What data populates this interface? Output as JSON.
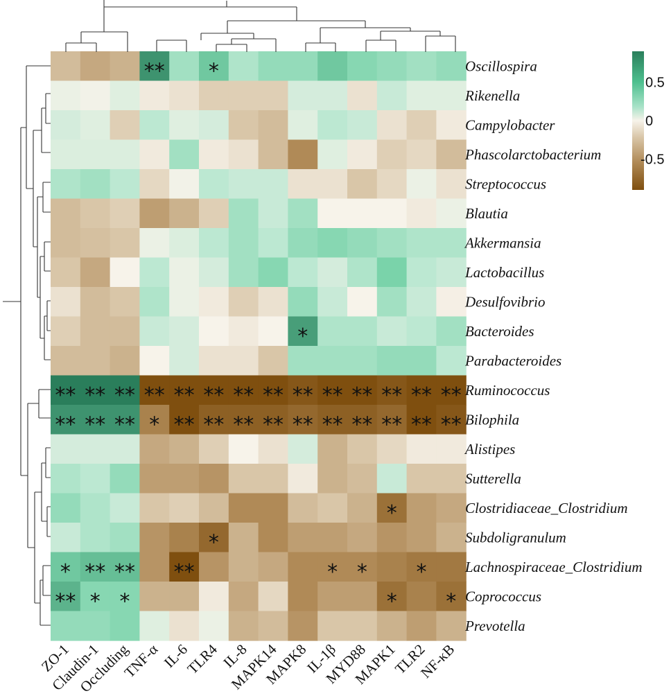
{
  "chart_data": {
    "type": "heatmap",
    "title": "",
    "value_meaning": "correlation coefficient",
    "columns": [
      "ZO-1",
      "Claudin-1",
      "Occluding",
      "TNF-α",
      "IL-6",
      "TLR4",
      "IL-8",
      "MAPK14",
      "MAPK8",
      "IL-1β",
      "MYD88",
      "MAPK1",
      "TLR2",
      "NF-κB"
    ],
    "rows": [
      "Oscillospira",
      "Rikenella",
      "Campylobacter",
      "Phascolarctobacterium",
      "Streptococcus",
      "Blautia",
      "Akkermansia",
      "Lactobacillus",
      "Desulfovibrio",
      "Bacteroides",
      "Parabacteroides",
      "Ruminococcus",
      "Bilophila",
      "Alistipes",
      "Sutterella",
      "Clostridiaceae_Clostridium",
      "Subdoligranulum",
      "Lachnospiraceae_Clostridium",
      "Coprococcus",
      "Prevotella"
    ],
    "values": [
      [
        -0.3,
        -0.4,
        -0.35,
        0.8,
        0.35,
        0.55,
        0.3,
        0.4,
        0.4,
        0.55,
        0.45,
        0.4,
        0.35,
        0.4
      ],
      [
        0.05,
        0.02,
        0.1,
        -0.05,
        -0.1,
        -0.2,
        -0.2,
        -0.2,
        0.15,
        0.15,
        -0.1,
        0.2,
        0.1,
        0.1
      ],
      [
        0.15,
        0.1,
        -0.2,
        0.25,
        0.1,
        0.15,
        -0.25,
        -0.3,
        0.1,
        0.25,
        0.2,
        -0.1,
        -0.2,
        -0.05
      ],
      [
        0.12,
        0.12,
        0.12,
        -0.05,
        0.35,
        -0.05,
        -0.1,
        -0.3,
        -0.55,
        0.1,
        -0.05,
        -0.2,
        -0.15,
        -0.3
      ],
      [
        0.3,
        0.35,
        0.25,
        -0.15,
        0.02,
        0.25,
        0.2,
        0.2,
        -0.1,
        -0.1,
        -0.25,
        -0.15,
        0.05,
        -0.1
      ],
      [
        -0.3,
        -0.25,
        -0.2,
        -0.45,
        -0.35,
        -0.2,
        0.35,
        0.2,
        0.35,
        0.0,
        0.0,
        0.0,
        -0.05,
        0.05
      ],
      [
        -0.3,
        -0.28,
        -0.25,
        0.05,
        0.12,
        0.25,
        0.35,
        0.25,
        0.4,
        0.45,
        0.4,
        0.35,
        0.3,
        0.3
      ],
      [
        -0.25,
        -0.4,
        0.0,
        0.25,
        0.05,
        0.15,
        0.35,
        0.45,
        0.25,
        0.15,
        0.3,
        0.5,
        0.25,
        0.2
      ],
      [
        -0.1,
        -0.3,
        -0.25,
        0.3,
        0.05,
        -0.05,
        -0.2,
        -0.1,
        0.4,
        0.2,
        0.0,
        0.35,
        0.2,
        -0.02
      ],
      [
        -0.2,
        -0.3,
        -0.3,
        0.2,
        0.15,
        0.0,
        -0.05,
        0.0,
        0.75,
        0.3,
        0.3,
        0.2,
        0.25,
        0.35
      ],
      [
        -0.3,
        -0.3,
        -0.35,
        0.0,
        0.15,
        -0.1,
        -0.1,
        -0.25,
        0.35,
        0.35,
        0.35,
        0.4,
        0.4,
        0.25
      ],
      [
        0.9,
        0.9,
        0.9,
        -0.9,
        -0.9,
        -0.9,
        -0.9,
        -0.9,
        -0.85,
        -0.9,
        -0.9,
        -0.85,
        -0.9,
        -0.9
      ],
      [
        0.8,
        0.8,
        0.8,
        -0.6,
        -0.9,
        -0.8,
        -0.8,
        -0.8,
        -0.75,
        -0.8,
        -0.8,
        -0.75,
        -0.9,
        -0.85
      ],
      [
        0.15,
        0.15,
        0.15,
        -0.4,
        -0.35,
        -0.2,
        0.0,
        -0.1,
        0.15,
        -0.35,
        -0.25,
        -0.15,
        -0.05,
        -0.05
      ],
      [
        0.3,
        0.25,
        0.4,
        -0.45,
        -0.45,
        -0.5,
        -0.25,
        -0.25,
        -0.05,
        -0.35,
        -0.3,
        0.2,
        -0.25,
        -0.25
      ],
      [
        0.4,
        0.3,
        0.2,
        -0.25,
        -0.2,
        -0.3,
        -0.55,
        -0.55,
        -0.3,
        -0.25,
        -0.35,
        -0.7,
        -0.45,
        -0.4
      ],
      [
        0.2,
        0.3,
        0.35,
        -0.5,
        -0.6,
        -0.75,
        -0.35,
        -0.55,
        -0.45,
        -0.45,
        -0.4,
        -0.5,
        -0.45,
        -0.35
      ],
      [
        0.55,
        0.6,
        0.6,
        -0.5,
        -0.9,
        -0.5,
        -0.35,
        -0.4,
        -0.55,
        -0.55,
        -0.55,
        -0.6,
        -0.65,
        -0.65
      ],
      [
        0.65,
        0.45,
        0.45,
        -0.35,
        -0.35,
        -0.05,
        -0.4,
        -0.15,
        -0.55,
        -0.45,
        -0.45,
        -0.7,
        -0.6,
        -0.7
      ],
      [
        0.4,
        0.4,
        0.45,
        0.1,
        -0.1,
        0.05,
        -0.35,
        -0.3,
        -0.5,
        -0.25,
        -0.25,
        -0.35,
        -0.45,
        -0.35
      ]
    ],
    "significance": [
      [
        "",
        "",
        "",
        "**",
        "",
        "*",
        "",
        "",
        "",
        "",
        "",
        "",
        "",
        ""
      ],
      [
        "",
        "",
        "",
        "",
        "",
        "",
        "",
        "",
        "",
        "",
        "",
        "",
        "",
        ""
      ],
      [
        "",
        "",
        "",
        "",
        "",
        "",
        "",
        "",
        "",
        "",
        "",
        "",
        "",
        ""
      ],
      [
        "",
        "",
        "",
        "",
        "",
        "",
        "",
        "",
        "",
        "",
        "",
        "",
        "",
        ""
      ],
      [
        "",
        "",
        "",
        "",
        "",
        "",
        "",
        "",
        "",
        "",
        "",
        "",
        "",
        ""
      ],
      [
        "",
        "",
        "",
        "",
        "",
        "",
        "",
        "",
        "",
        "",
        "",
        "",
        "",
        ""
      ],
      [
        "",
        "",
        "",
        "",
        "",
        "",
        "",
        "",
        "",
        "",
        "",
        "",
        "",
        ""
      ],
      [
        "",
        "",
        "",
        "",
        "",
        "",
        "",
        "",
        "",
        "",
        "",
        "",
        "",
        ""
      ],
      [
        "",
        "",
        "",
        "",
        "",
        "",
        "",
        "",
        "",
        "",
        "",
        "",
        "",
        ""
      ],
      [
        "",
        "",
        "",
        "",
        "",
        "",
        "",
        "",
        "*",
        "",
        "",
        "",
        "",
        ""
      ],
      [
        "",
        "",
        "",
        "",
        "",
        "",
        "",
        "",
        "",
        "",
        "",
        "",
        "",
        ""
      ],
      [
        "**",
        "**",
        "**",
        "**",
        "**",
        "**",
        "**",
        "**",
        "**",
        "**",
        "**",
        "**",
        "**",
        "**"
      ],
      [
        "**",
        "**",
        "**",
        "*",
        "**",
        "**",
        "**",
        "**",
        "**",
        "**",
        "**",
        "**",
        "**",
        "**"
      ],
      [
        "",
        "",
        "",
        "",
        "",
        "",
        "",
        "",
        "",
        "",
        "",
        "",
        "",
        ""
      ],
      [
        "",
        "",
        "",
        "",
        "",
        "",
        "",
        "",
        "",
        "",
        "",
        "",
        "",
        ""
      ],
      [
        "",
        "",
        "",
        "",
        "",
        "",
        "",
        "",
        "",
        "",
        "",
        "*",
        "",
        ""
      ],
      [
        "",
        "",
        "",
        "",
        "",
        "*",
        "",
        "",
        "",
        "",
        "",
        "",
        "",
        ""
      ],
      [
        "*",
        "**",
        "**",
        "",
        "**",
        "",
        "",
        "",
        "",
        "*",
        "*",
        "",
        "*",
        ""
      ],
      [
        "**",
        "*",
        "*",
        "",
        "",
        "",
        "",
        "",
        "",
        "",
        "",
        "*",
        "",
        "*"
      ],
      [
        "",
        "",
        "",
        "",
        "",
        "",
        "",
        "",
        "",
        "",
        "",
        "",
        "",
        ""
      ]
    ],
    "colorbar": {
      "range": [
        -0.9,
        0.9
      ],
      "ticks": [
        0.5,
        0,
        -0.5
      ],
      "tick_labels": [
        "0.5",
        "0",
        "-0.5"
      ],
      "low_color": "#7f4f0f",
      "mid_color": "#f7f3ea",
      "high_color": "#2a7e5b",
      "position": "right"
    }
  }
}
